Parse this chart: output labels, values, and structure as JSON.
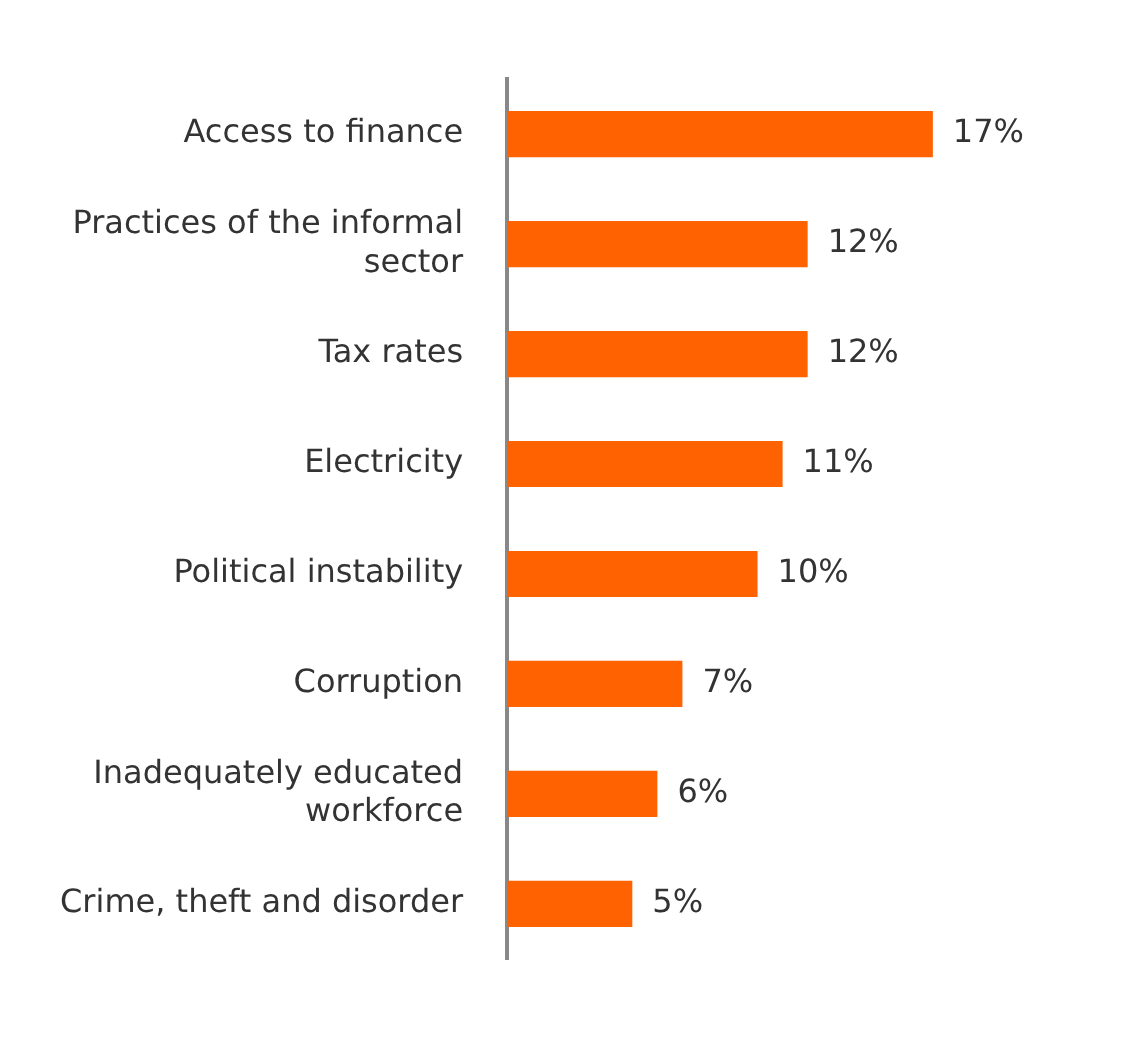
{
  "chart_data": {
    "type": "bar",
    "orientation": "horizontal",
    "categories": [
      "Access to finance",
      "Practices of the informal sector",
      "Tax rates",
      "Electricity",
      "Political instability",
      "Corruption",
      "Inadequately educated workforce",
      "Crime, theft and disorder"
    ],
    "values": [
      17,
      12,
      12,
      11,
      10,
      7,
      6,
      5
    ],
    "value_labels": [
      "17%",
      "12%",
      "12%",
      "11%",
      "10%",
      "7%",
      "6%",
      "5%"
    ],
    "color": "#ff6200"
  }
}
